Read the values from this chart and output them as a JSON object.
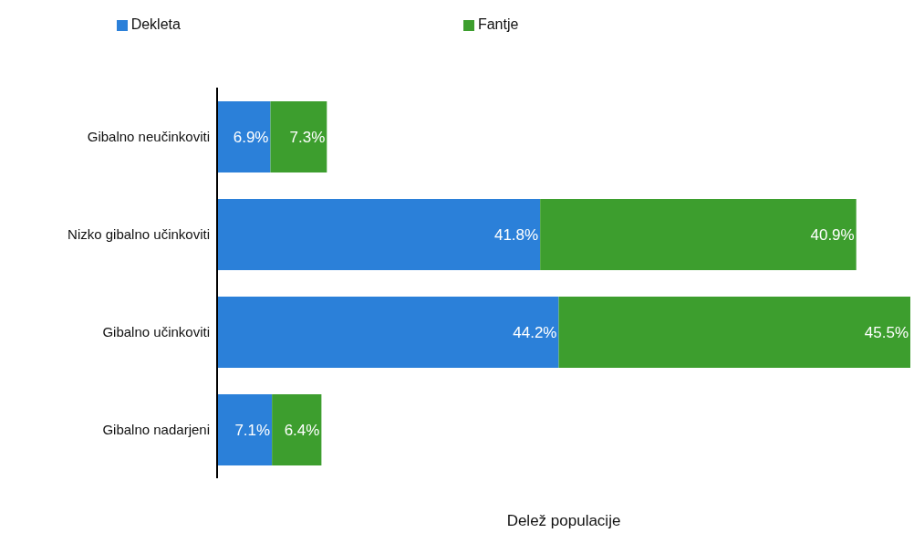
{
  "chart_data": {
    "type": "bar",
    "orientation": "horizontal",
    "stacked": true,
    "xlabel": "Delež populacije",
    "categories": [
      "Gibalno neučinkoviti",
      "Nizko gibalno učinkoviti",
      "Gibalno učinkoviti",
      "Gibalno nadarjeni"
    ],
    "series": [
      {
        "name": "Dekleta",
        "color": "#2b80d9",
        "values": [
          6.9,
          41.8,
          44.2,
          7.1
        ],
        "value_labels": [
          "6.9%",
          "41.8%",
          "44.2%",
          "7.1%"
        ]
      },
      {
        "name": "Fantje",
        "color": "#3d9e2e",
        "values": [
          7.3,
          40.9,
          45.5,
          6.4
        ],
        "value_labels": [
          "7.3%",
          "40.9%",
          "45.5%",
          "6.4%"
        ]
      }
    ],
    "tick_labels": "y",
    "legend": "top"
  }
}
